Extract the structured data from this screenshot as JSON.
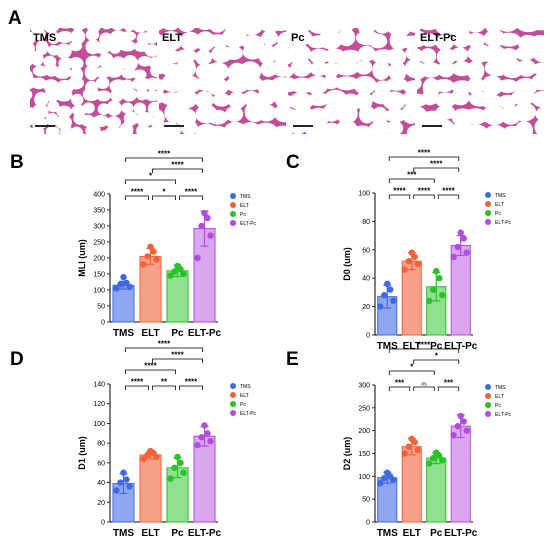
{
  "panel_a": {
    "letter": "A",
    "images": [
      {
        "label": "TMS"
      },
      {
        "label": "ELT"
      },
      {
        "label": "Pc"
      },
      {
        "label": "ELT-Pc"
      }
    ]
  },
  "colors": {
    "TMS": "#4169e1",
    "ELT": "#f4623a",
    "Pc": "#27c227",
    "ELT-Pc": "#b44be1",
    "TMS_fill": "#8fa6f0",
    "ELT_fill": "#f7a08a",
    "Pc_fill": "#90e090",
    "ELT-Pc_fill": "#daa6f0",
    "tissue": "#c44d9a",
    "tissue_bg": "#f6e3ef"
  },
  "chart_data": [
    {
      "panel": "B",
      "type": "bar",
      "categories": [
        "TMS",
        "ELT",
        "Pc",
        "ELT-Pc"
      ],
      "values": [
        115,
        205,
        160,
        292
      ],
      "errors": [
        12,
        25,
        18,
        55
      ],
      "points": [
        [
          105,
          110,
          118,
          122,
          140
        ],
        [
          180,
          195,
          205,
          220,
          235
        ],
        [
          145,
          150,
          158,
          165,
          175
        ],
        [
          200,
          270,
          300,
          325,
          340
        ]
      ],
      "ylabel": "MLI (um)",
      "ylim": [
        0,
        400
      ],
      "yticks": [
        0,
        50,
        100,
        150,
        200,
        250,
        300,
        350,
        400
      ],
      "legend": [
        "TMS",
        "ELT",
        "Pc",
        "ELT-Pc"
      ],
      "comparisons": [
        {
          "pair": [
            "TMS",
            "ELT-Pc"
          ],
          "label": "****"
        },
        {
          "pair": [
            "ELT",
            "ELT-Pc"
          ],
          "label": "****"
        },
        {
          "pair": [
            "TMS",
            "Pc"
          ],
          "label": "*"
        },
        {
          "pair": [
            "TMS",
            "ELT"
          ],
          "label": "****"
        },
        {
          "pair": [
            "ELT",
            "Pc"
          ],
          "label": "*"
        },
        {
          "pair": [
            "Pc",
            "ELT-Pc"
          ],
          "label": "****"
        }
      ]
    },
    {
      "panel": "C",
      "type": "bar",
      "categories": [
        "TMS",
        "ELT",
        "Pc",
        "ELT-Pc"
      ],
      "values": [
        27,
        52,
        34,
        63
      ],
      "errors": [
        8,
        6,
        10,
        7
      ],
      "points": [
        [
          20,
          24,
          28,
          32,
          36
        ],
        [
          46,
          50,
          52,
          55,
          58
        ],
        [
          24,
          28,
          32,
          40,
          45
        ],
        [
          55,
          58,
          62,
          68,
          72
        ]
      ],
      "ylabel": "D0 (um)",
      "ylim": [
        0,
        100
      ],
      "yticks": [
        0,
        20,
        40,
        60,
        80,
        100
      ],
      "legend": [
        "TMS",
        "ELT",
        "Pc",
        "ELT-Pc"
      ],
      "comparisons": [
        {
          "pair": [
            "TMS",
            "ELT-Pc"
          ],
          "label": "****"
        },
        {
          "pair": [
            "ELT",
            "ELT-Pc"
          ],
          "label": "****"
        },
        {
          "pair": [
            "TMS",
            "Pc"
          ],
          "label": "***"
        },
        {
          "pair": [
            "TMS",
            "ELT"
          ],
          "label": "****"
        },
        {
          "pair": [
            "ELT",
            "Pc"
          ],
          "label": "****"
        },
        {
          "pair": [
            "Pc",
            "ELT-Pc"
          ],
          "label": "****"
        }
      ]
    },
    {
      "panel": "D",
      "type": "bar",
      "categories": [
        "TMS",
        "ELT",
        "Pc",
        "ELT-Pc"
      ],
      "values": [
        39,
        68,
        55,
        87
      ],
      "errors": [
        10,
        4,
        10,
        10
      ],
      "points": [
        [
          32,
          36,
          40,
          43,
          50
        ],
        [
          64,
          66,
          68,
          70,
          72
        ],
        [
          44,
          50,
          55,
          60,
          66
        ],
        [
          78,
          82,
          86,
          90,
          98
        ]
      ],
      "ylabel": "D1 (um)",
      "ylim": [
        0,
        140
      ],
      "yticks": [
        0,
        20,
        40,
        60,
        80,
        100,
        120,
        140
      ],
      "legend": [
        "TMS",
        "ELT",
        "Pc",
        "ELT-Pc"
      ],
      "comparisons": [
        {
          "pair": [
            "TMS",
            "ELT-Pc"
          ],
          "label": "****"
        },
        {
          "pair": [
            "ELT",
            "ELT-Pc"
          ],
          "label": "****"
        },
        {
          "pair": [
            "TMS",
            "Pc"
          ],
          "label": "****"
        },
        {
          "pair": [
            "TMS",
            "ELT"
          ],
          "label": "****"
        },
        {
          "pair": [
            "ELT",
            "Pc"
          ],
          "label": "**"
        },
        {
          "pair": [
            "Pc",
            "ELT-Pc"
          ],
          "label": "****"
        }
      ]
    },
    {
      "panel": "E",
      "type": "bar",
      "categories": [
        "TMS",
        "ELT",
        "Pc",
        "ELT-Pc"
      ],
      "values": [
        97,
        165,
        140,
        210
      ],
      "errors": [
        12,
        18,
        12,
        25
      ],
      "points": [
        [
          85,
          92,
          96,
          100,
          108
        ],
        [
          150,
          158,
          165,
          175,
          182
        ],
        [
          128,
          135,
          140,
          145,
          152
        ],
        [
          190,
          200,
          210,
          220,
          232
        ]
      ],
      "ylabel": "D2 (um)",
      "ylim": [
        0,
        300
      ],
      "yticks": [
        0,
        50,
        100,
        150,
        200,
        250,
        300
      ],
      "legend": [
        "TMS",
        "ELT",
        "Pc",
        "ELT-Pc"
      ],
      "comparisons": [
        {
          "pair": [
            "TMS",
            "ELT-Pc"
          ],
          "label": "****"
        },
        {
          "pair": [
            "ELT",
            "ELT-Pc"
          ],
          "label": "*"
        },
        {
          "pair": [
            "TMS",
            "Pc"
          ],
          "label": "*"
        },
        {
          "pair": [
            "TMS",
            "ELT"
          ],
          "label": "***"
        },
        {
          "pair": [
            "ELT",
            "Pc"
          ],
          "label": "ns"
        },
        {
          "pair": [
            "Pc",
            "ELT-Pc"
          ],
          "label": "***"
        }
      ]
    }
  ]
}
